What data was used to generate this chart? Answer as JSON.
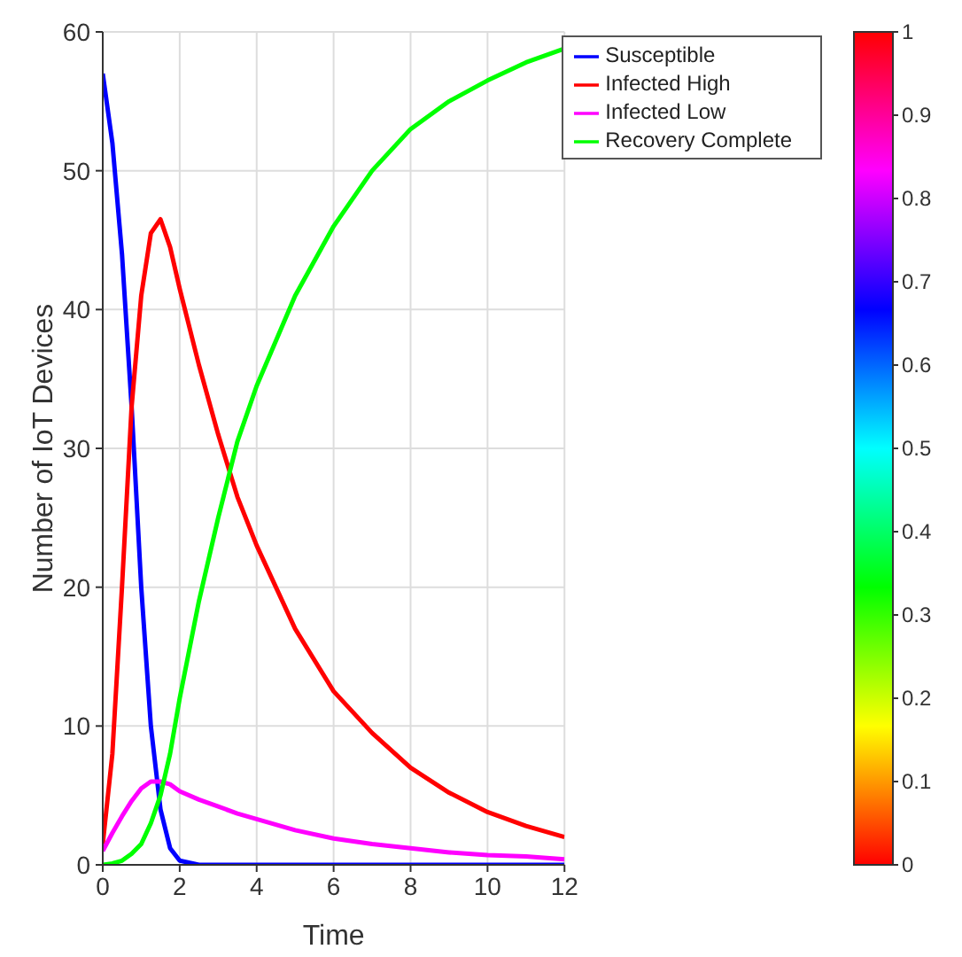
{
  "chart_data": {
    "type": "line",
    "xlabel": "Time",
    "ylabel": "Number of IoT  Devices",
    "x": [
      0,
      0.25,
      0.5,
      0.75,
      1,
      1.25,
      1.5,
      1.75,
      2,
      2.5,
      3,
      3.5,
      4,
      5,
      6,
      7,
      8,
      9,
      10,
      11,
      12
    ],
    "series": [
      {
        "name": "Susceptible",
        "color": "#0000ff",
        "values": [
          57,
          52,
          44,
          33,
          20,
          10,
          4,
          1.2,
          0.3,
          0,
          0,
          0,
          0,
          0,
          0,
          0,
          0,
          0,
          0,
          0,
          0
        ]
      },
      {
        "name": "Infected High",
        "color": "#ff0000",
        "values": [
          1.5,
          8,
          20,
          33,
          41,
          45.5,
          46.5,
          44.5,
          41.5,
          36,
          31,
          26.5,
          23,
          17,
          12.5,
          9.5,
          7,
          5.2,
          3.8,
          2.8,
          2
        ]
      },
      {
        "name": "Infected Low",
        "color": "#ff00ff",
        "values": [
          1,
          2.3,
          3.5,
          4.6,
          5.5,
          6,
          6,
          5.8,
          5.3,
          4.7,
          4.2,
          3.7,
          3.3,
          2.5,
          1.9,
          1.5,
          1.2,
          0.9,
          0.7,
          0.6,
          0.4
        ]
      },
      {
        "name": "Recovery Complete",
        "color": "#00ff00",
        "values": [
          0,
          0.1,
          0.3,
          0.8,
          1.5,
          3,
          5,
          8,
          12,
          19,
          25,
          30.5,
          34.5,
          41,
          46,
          50,
          53,
          55,
          56.5,
          57.8,
          58.8
        ]
      }
    ],
    "xlim": [
      0,
      12
    ],
    "xticks": [
      0,
      2,
      4,
      6,
      8,
      10,
      12
    ],
    "ylim": [
      0,
      60
    ],
    "yticks": [
      0,
      10,
      20,
      30,
      40,
      50,
      60
    ],
    "clim": [
      0,
      1
    ],
    "cticks": [
      0,
      0.1,
      0.2,
      0.3,
      0.4,
      0.5,
      0.6,
      0.7,
      0.8,
      0.9,
      1
    ],
    "grid": true,
    "legend": "top right",
    "marker": "none",
    "line_style": "solid"
  }
}
